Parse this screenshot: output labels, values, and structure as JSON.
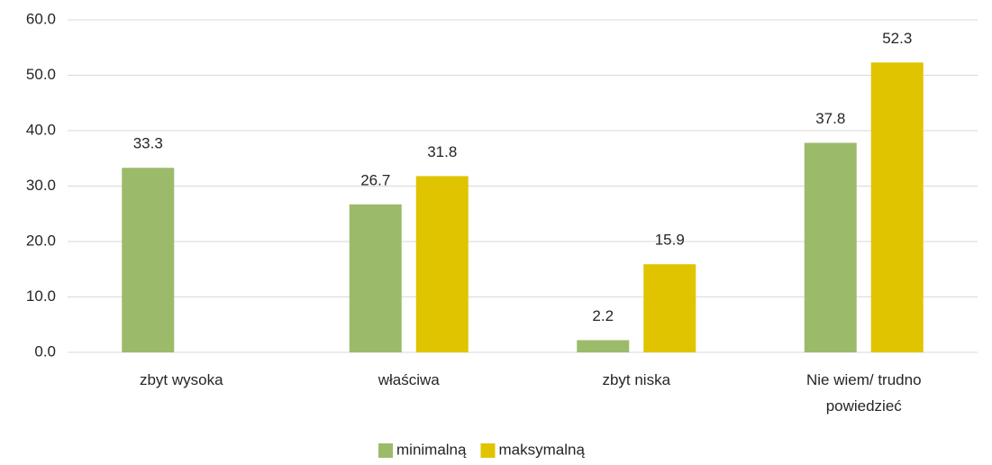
{
  "chart_data": {
    "type": "bar",
    "categories": [
      "zbyt wysoka",
      "właściwa",
      "zbyt niska",
      "Nie wiem/ trudno powiedzieć"
    ],
    "series": [
      {
        "name": "minimalną",
        "color": "#9bbb6a",
        "values": [
          33.3,
          26.7,
          2.2,
          37.8
        ]
      },
      {
        "name": "maksymalną",
        "color": "#e0c400",
        "values": [
          null,
          31.8,
          15.9,
          52.3
        ]
      }
    ],
    "ylim": [
      0,
      60
    ],
    "yticks": [
      {
        "value": 0,
        "label": "0.0"
      },
      {
        "value": 10,
        "label": "10.0"
      },
      {
        "value": 20,
        "label": "20.0"
      },
      {
        "value": 30,
        "label": "30.0"
      },
      {
        "value": 40,
        "label": "40.0"
      },
      {
        "value": 50,
        "label": "50.0"
      },
      {
        "value": 60,
        "label": "60.0"
      }
    ],
    "grid": true
  }
}
